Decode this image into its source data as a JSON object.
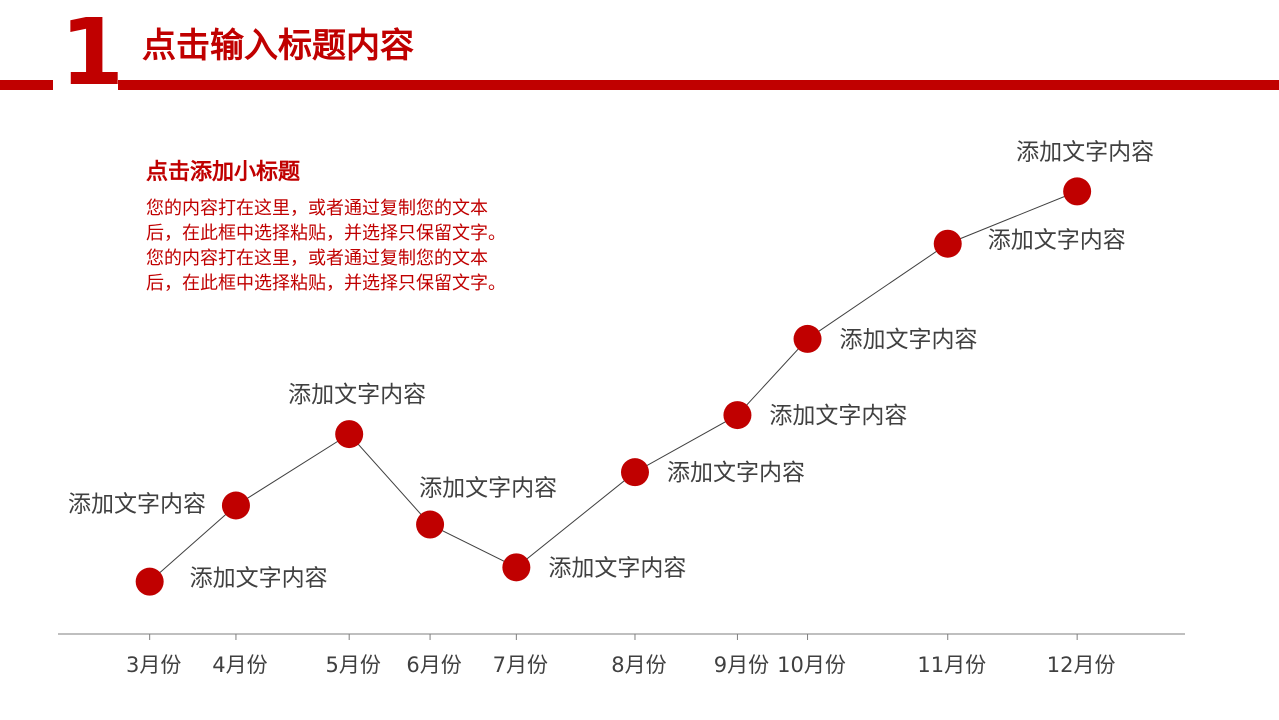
{
  "header": {
    "section_number": "1",
    "title": "点击输入标题内容"
  },
  "intro": {
    "subtitle": "点击添加小标题",
    "body_lines": [
      "您的内容打在这里，或者通过复制您的文本",
      "后，在此框中选择粘贴，并选择只保留文字。",
      "您的内容打在这里，或者通过复制您的文本",
      "后，在此框中选择粘贴，并选择只保留文字。"
    ]
  },
  "colors": {
    "accent": "#c00000",
    "line": "#404040",
    "text": "#404040"
  },
  "chart_data": {
    "type": "line",
    "title": "",
    "xlabel": "",
    "ylabel": "",
    "categories": [
      "3月份",
      "4月份",
      "5月份",
      "6月份",
      "7月份",
      "8月份",
      "9月份",
      "10月份",
      "11月份",
      "12月份"
    ],
    "x": [
      0,
      0.8,
      1.85,
      2.6,
      3.4,
      4.5,
      5.45,
      6.1,
      7.4,
      8.6
    ],
    "series": [
      {
        "values": [
          0.3,
          1.9,
          3.4,
          1.5,
          0.6,
          2.6,
          3.8,
          5.4,
          7.4,
          8.5
        ],
        "labels": [
          "添加文字内容",
          "添加文字内容",
          "添加文字内容",
          "添加文字内容",
          "添加文字内容",
          "添加文字内容",
          "添加文字内容",
          "添加文字内容",
          "添加文字内容",
          "添加文字内容"
        ],
        "label_positions": [
          "right-below",
          "left",
          "above",
          "above-right",
          "right",
          "right",
          "right",
          "right",
          "right-below",
          "above"
        ]
      }
    ],
    "ylim": [
      -0.8,
      10
    ],
    "xlim": [
      -0.85,
      9.6
    ],
    "grid": false,
    "marker": "circle"
  }
}
